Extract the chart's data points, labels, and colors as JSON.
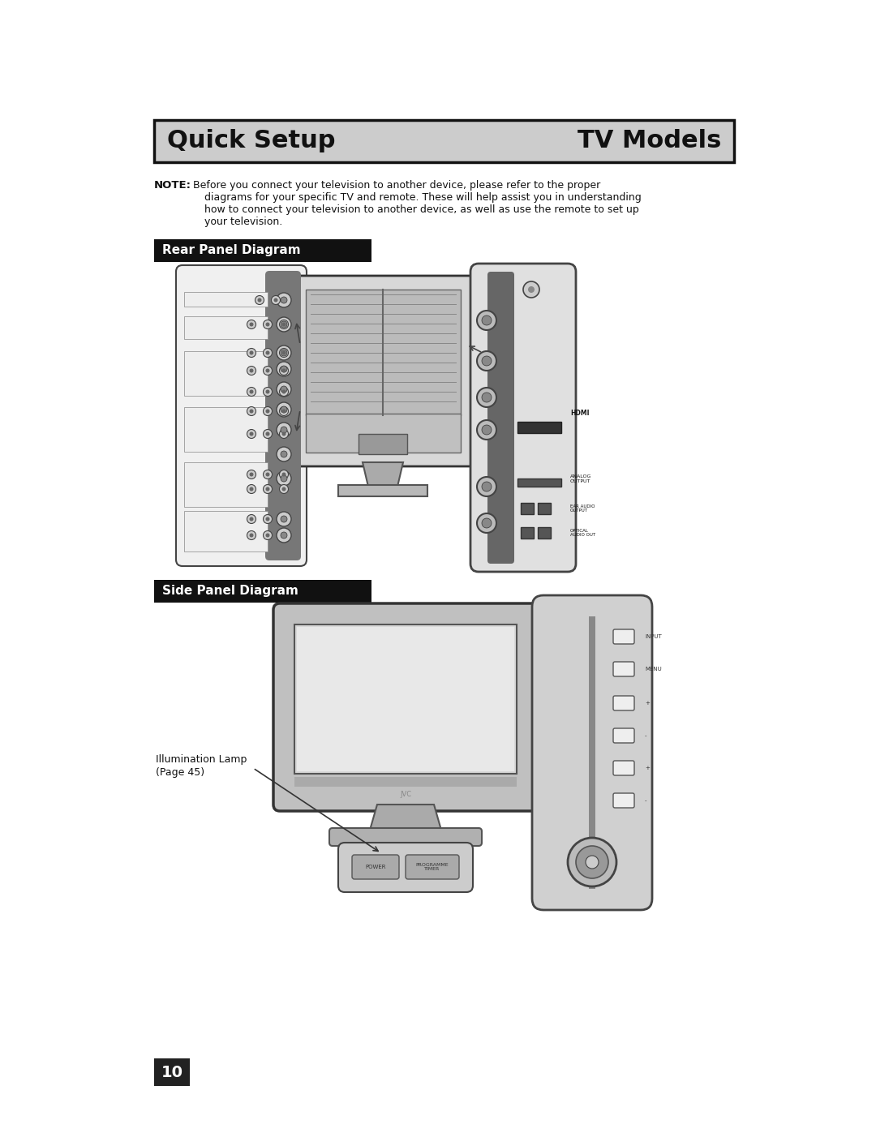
{
  "page_bg": "#ffffff",
  "title_bg": "#cccccc",
  "title_text_left": "Quick Setup",
  "title_text_right": "TV Models",
  "title_fontsize": 22,
  "note_label": "NOTE:",
  "note_text_line1": "  Before you connect your television to another device, please refer to the proper",
  "note_text_line2": "          diagrams for your specific TV and remote. These will help assist you in understanding",
  "note_text_line3": "          how to connect your television to another device, as well as use the remote to set up",
  "note_text_line4": "          your television.",
  "note_fontsize": 9.5,
  "section1_bg": "#111111",
  "section1_text": "Rear Panel Diagram",
  "section2_bg": "#111111",
  "section2_text": "Side Panel Diagram",
  "section_fontsize": 11,
  "section_text_color": "#ffffff",
  "illum_label_line1": "Illumination Lamp",
  "illum_label_line2": "(Page 45)",
  "page_number": "10",
  "page_number_bg": "#222222",
  "page_number_color": "#ffffff"
}
